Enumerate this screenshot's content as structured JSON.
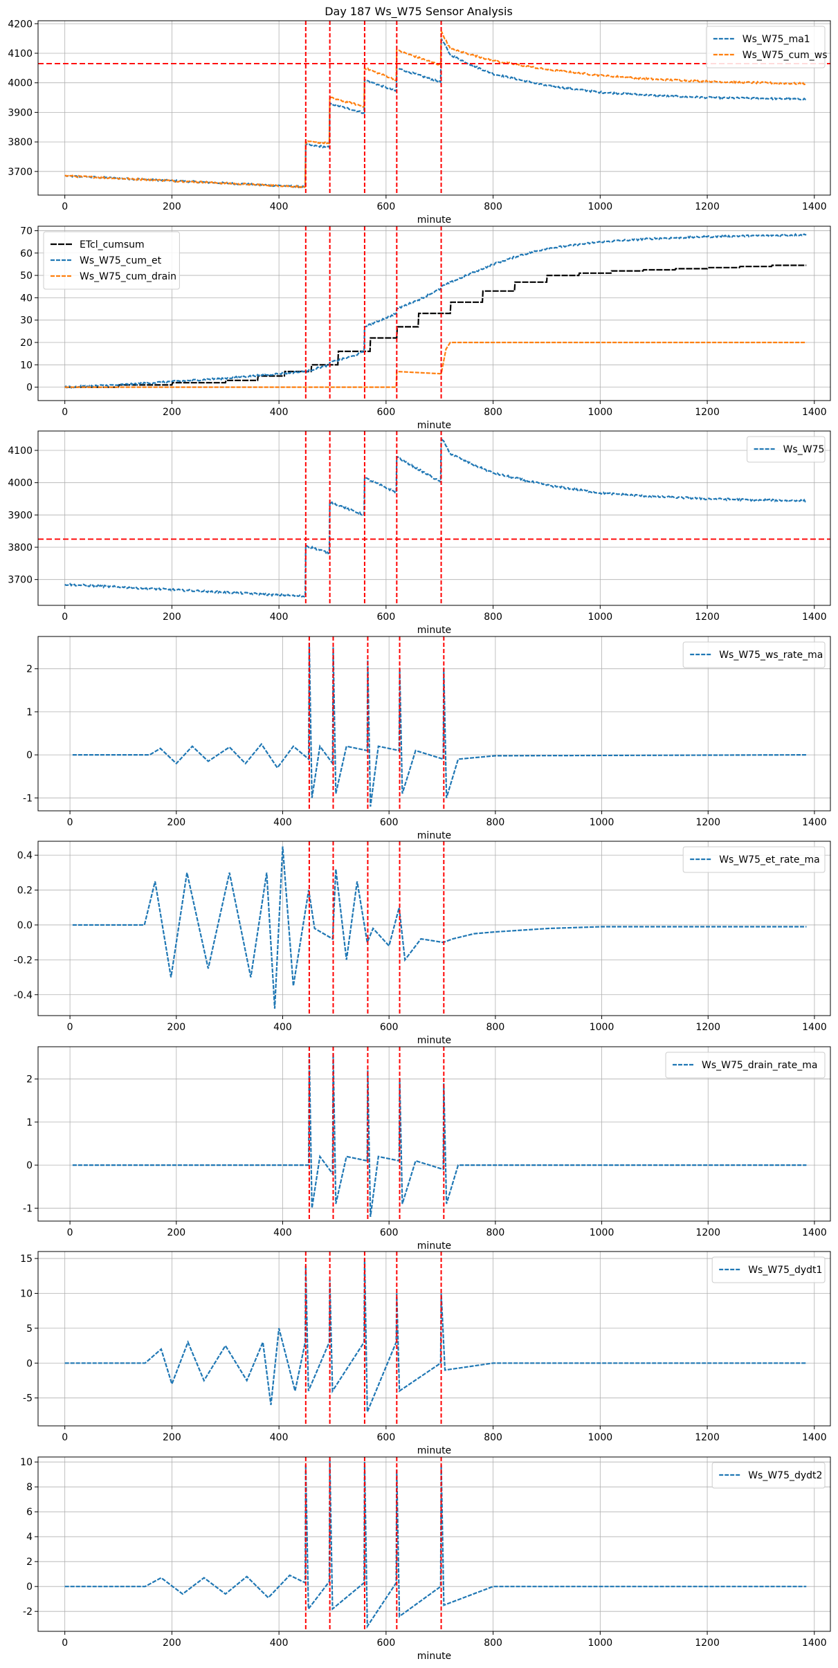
{
  "figure": {
    "title": "Day 187 Ws_W75 Sensor Analysis"
  },
  "colors": {
    "blue": "#1f77b4",
    "orange": "#ff7f0e",
    "black": "#000000",
    "red": "#ff0000",
    "grid": "#b0b0b0"
  },
  "chart_data": [
    {
      "type": "line",
      "xlabel": "minute",
      "xlim": [
        -50,
        1430
      ],
      "xticks": [
        0,
        200,
        400,
        600,
        800,
        1000,
        1200,
        1400
      ],
      "ylim": [
        3620,
        4210
      ],
      "yticks": [
        3700,
        3800,
        3900,
        4000,
        4100,
        4200
      ],
      "grid": true,
      "legend": "top-right",
      "event_lines": [
        450,
        495,
        560,
        620,
        703
      ],
      "hline": 4065,
      "series": [
        {
          "name": "Ws_W75_ma1",
          "color": "blue",
          "noise": 3,
          "x": [
            0,
            449,
            450,
            494,
            495,
            559,
            560,
            619,
            620,
            702,
            703,
            720,
            760,
            800,
            900,
            1000,
            1100,
            1200,
            1300,
            1385
          ],
          "y": [
            3685,
            3648,
            3790,
            3782,
            3930,
            3898,
            4010,
            3972,
            4050,
            4002,
            4150,
            4095,
            4060,
            4030,
            3990,
            3968,
            3957,
            3950,
            3947,
            3945
          ]
        },
        {
          "name": "Ws_W75_cum_ws",
          "color": "orange",
          "noise": 3,
          "x": [
            0,
            449,
            450,
            494,
            495,
            559,
            560,
            619,
            620,
            702,
            703,
            720,
            760,
            800,
            900,
            1000,
            1100,
            1200,
            1300,
            1385
          ],
          "y": [
            3685,
            3648,
            3800,
            3795,
            3950,
            3920,
            4050,
            4010,
            4110,
            4060,
            4175,
            4115,
            4095,
            4075,
            4045,
            4025,
            4012,
            4005,
            4000,
            3997
          ]
        }
      ]
    },
    {
      "type": "line",
      "xlabel": "minute",
      "xlim": [
        -50,
        1430
      ],
      "xticks": [
        0,
        200,
        400,
        600,
        800,
        1000,
        1200,
        1400
      ],
      "ylim": [
        -6,
        72
      ],
      "yticks": [
        0,
        10,
        20,
        30,
        40,
        50,
        60,
        70
      ],
      "grid": true,
      "legend": "top-left",
      "event_lines": [
        450,
        495,
        560,
        620,
        703
      ],
      "series": [
        {
          "name": "ETcl_cumsum",
          "color": "black",
          "noise": 0,
          "x": [
            0,
            100,
            101,
            200,
            201,
            300,
            301,
            360,
            361,
            410,
            411,
            460,
            461,
            510,
            511,
            570,
            571,
            620,
            621,
            660,
            661,
            720,
            721,
            780,
            781,
            840,
            841,
            900,
            901,
            960,
            961,
            1020,
            1021,
            1080,
            1081,
            1140,
            1141,
            1200,
            1201,
            1260,
            1261,
            1320,
            1321,
            1385
          ],
          "y": [
            0,
            0,
            1,
            1,
            2,
            2,
            3,
            3,
            5,
            5,
            7,
            7,
            10,
            10,
            16,
            16,
            22,
            22,
            27,
            27,
            33,
            33,
            38,
            38,
            43,
            43,
            47,
            47,
            50,
            50,
            51,
            51,
            52,
            52,
            52.5,
            52.5,
            53,
            53,
            53.5,
            53.5,
            54,
            54,
            54.5,
            54.5
          ]
        },
        {
          "name": "Ws_W75_cum_et",
          "color": "blue",
          "noise": 0.4,
          "x": [
            0,
            100,
            200,
            300,
            400,
            449,
            450,
            494,
            495,
            540,
            559,
            560,
            600,
            619,
            620,
            660,
            702,
            703,
            750,
            800,
            850,
            900,
            1000,
            1100,
            1200,
            1300,
            1385
          ],
          "y": [
            0,
            1,
            2.5,
            4,
            6,
            7,
            7,
            10,
            11,
            14,
            16,
            27,
            31,
            33,
            35,
            39,
            44,
            45,
            50,
            55,
            59,
            62,
            65,
            66.5,
            67.3,
            67.8,
            68.2
          ]
        },
        {
          "name": "Ws_W75_cum_drain",
          "color": "orange",
          "noise": 0,
          "x": [
            0,
            619,
            620,
            702,
            703,
            712,
            720,
            1385
          ],
          "y": [
            0,
            0,
            7,
            6,
            6,
            17,
            20,
            20
          ]
        }
      ]
    },
    {
      "type": "line",
      "xlabel": "minute",
      "xlim": [
        -50,
        1430
      ],
      "xticks": [
        0,
        200,
        400,
        600,
        800,
        1000,
        1200,
        1400
      ],
      "ylim": [
        3620,
        4160
      ],
      "yticks": [
        3700,
        3800,
        3900,
        4000,
        4100
      ],
      "grid": true,
      "legend": "top-right",
      "event_lines": [
        450,
        495,
        560,
        620,
        703
      ],
      "hline": 3825,
      "series": [
        {
          "name": "Ws_W75",
          "color": "blue",
          "noise": 3,
          "x": [
            0,
            449,
            450,
            494,
            495,
            559,
            560,
            619,
            620,
            702,
            703,
            720,
            760,
            800,
            900,
            1000,
            1100,
            1200,
            1300,
            1385
          ],
          "y": [
            3685,
            3648,
            3805,
            3782,
            3940,
            3900,
            4015,
            3970,
            4080,
            4002,
            4140,
            4090,
            4058,
            4030,
            3992,
            3968,
            3957,
            3950,
            3946,
            3944
          ]
        }
      ]
    },
    {
      "type": "line",
      "xlabel": "minute",
      "xlim": [
        -60,
        1430
      ],
      "xticks": [
        0,
        200,
        400,
        600,
        800,
        1000,
        1200,
        1400
      ],
      "ylim": [
        -1.3,
        2.75
      ],
      "yticks": [
        -1,
        0,
        1,
        2
      ],
      "grid": true,
      "legend": "top-right",
      "event_lines": [
        450,
        495,
        560,
        620,
        703
      ],
      "series": [
        {
          "name": "Ws_W75_ws_rate_ma",
          "color": "blue",
          "noise": 0,
          "x": [
            5,
            150,
            170,
            200,
            230,
            260,
            300,
            330,
            360,
            390,
            420,
            449,
            450,
            455,
            470,
            494,
            495,
            500,
            520,
            559,
            560,
            565,
            580,
            619,
            620,
            625,
            650,
            702,
            703,
            708,
            730,
            800,
            1385
          ],
          "y": [
            0,
            0,
            0.15,
            -0.2,
            0.2,
            -0.15,
            0.18,
            -0.2,
            0.25,
            -0.3,
            0.2,
            -0.1,
            2.6,
            -1.0,
            0.2,
            -0.2,
            2.5,
            -0.9,
            0.2,
            0.1,
            2.2,
            -1.2,
            0.2,
            0.1,
            2.0,
            -0.9,
            0.1,
            -0.1,
            2.0,
            -1.0,
            -0.1,
            -0.02,
            0
          ]
        }
      ]
    },
    {
      "type": "line",
      "xlabel": "minute",
      "xlim": [
        -60,
        1430
      ],
      "xticks": [
        0,
        200,
        400,
        600,
        800,
        1000,
        1200,
        1400
      ],
      "ylim": [
        -0.52,
        0.48
      ],
      "yticks": [
        -0.4,
        -0.2,
        0.0,
        0.2,
        0.4
      ],
      "grid": true,
      "legend": "top-right",
      "event_lines": [
        450,
        495,
        560,
        620,
        703
      ],
      "series": [
        {
          "name": "Ws_W75_et_rate_ma",
          "color": "blue",
          "noise": 0,
          "x": [
            5,
            140,
            160,
            190,
            220,
            260,
            300,
            340,
            370,
            385,
            400,
            420,
            449,
            460,
            494,
            500,
            520,
            540,
            559,
            570,
            600,
            619,
            630,
            660,
            702,
            720,
            760,
            800,
            900,
            1000,
            1385
          ],
          "y": [
            0,
            0,
            0.25,
            -0.3,
            0.3,
            -0.25,
            0.3,
            -0.3,
            0.3,
            -0.48,
            0.45,
            -0.35,
            0.2,
            -0.02,
            -0.08,
            0.32,
            -0.2,
            0.25,
            -0.1,
            -0.02,
            -0.12,
            0.1,
            -0.2,
            -0.08,
            -0.1,
            -0.08,
            -0.05,
            -0.04,
            -0.02,
            -0.01,
            -0.01
          ]
        }
      ]
    },
    {
      "type": "line",
      "xlabel": "minute",
      "xlim": [
        -60,
        1430
      ],
      "xticks": [
        0,
        200,
        400,
        600,
        800,
        1000,
        1200,
        1400
      ],
      "ylim": [
        -1.3,
        2.75
      ],
      "yticks": [
        -1,
        0,
        1,
        2
      ],
      "grid": true,
      "legend": "top-right",
      "event_lines": [
        450,
        495,
        560,
        620,
        703
      ],
      "series": [
        {
          "name": "Ws_W75_drain_rate_ma",
          "color": "blue",
          "noise": 0,
          "x": [
            5,
            449,
            450,
            455,
            470,
            494,
            495,
            500,
            520,
            559,
            560,
            565,
            580,
            619,
            620,
            625,
            650,
            702,
            703,
            708,
            730,
            1385
          ],
          "y": [
            0,
            0,
            2.6,
            -1.0,
            0.2,
            -0.2,
            2.6,
            -0.9,
            0.2,
            0.1,
            2.2,
            -1.2,
            0.2,
            0.1,
            2.0,
            -0.9,
            0.1,
            -0.1,
            1.9,
            -0.9,
            0,
            0
          ]
        }
      ]
    },
    {
      "type": "line",
      "xlabel": "minute",
      "xlim": [
        -50,
        1430
      ],
      "xticks": [
        0,
        200,
        400,
        600,
        800,
        1000,
        1200,
        1400
      ],
      "ylim": [
        -9,
        16
      ],
      "yticks": [
        -5,
        0,
        5,
        10,
        15
      ],
      "grid": true,
      "legend": "top-right",
      "event_lines": [
        450,
        495,
        560,
        620,
        703
      ],
      "series": [
        {
          "name": "Ws_W75_dydt1",
          "color": "blue",
          "noise": 0,
          "x": [
            0,
            150,
            180,
            200,
            230,
            260,
            300,
            340,
            370,
            385,
            400,
            430,
            449,
            450,
            455,
            494,
            495,
            500,
            559,
            560,
            565,
            619,
            620,
            625,
            702,
            703,
            710,
            800,
            1385
          ],
          "y": [
            0,
            0,
            2,
            -3,
            3,
            -2.5,
            2.5,
            -2.5,
            3,
            -6,
            5,
            -4,
            3,
            14,
            -4,
            3,
            12,
            -4,
            3,
            15,
            -7,
            3,
            10,
            -4,
            0,
            10,
            -1,
            0,
            0
          ]
        }
      ]
    },
    {
      "type": "line",
      "xlabel": "minute",
      "xlim": [
        -50,
        1430
      ],
      "xticks": [
        0,
        200,
        400,
        600,
        800,
        1000,
        1200,
        1400
      ],
      "ylim": [
        -3.6,
        10.4
      ],
      "yticks": [
        -2,
        0,
        2,
        4,
        6,
        8,
        10
      ],
      "grid": true,
      "legend": "top-right",
      "event_lines": [
        450,
        495,
        560,
        620,
        703
      ],
      "series": [
        {
          "name": "Ws_W75_dydt2",
          "color": "blue",
          "noise": 0,
          "x": [
            0,
            150,
            180,
            220,
            260,
            300,
            340,
            380,
            420,
            449,
            450,
            455,
            494,
            495,
            500,
            559,
            560,
            565,
            619,
            620,
            625,
            702,
            703,
            708,
            800,
            1385
          ],
          "y": [
            0,
            0,
            0.7,
            -0.6,
            0.7,
            -0.6,
            0.8,
            -0.9,
            0.9,
            0.3,
            9.8,
            -1.8,
            0.4,
            10.2,
            -1.8,
            0.3,
            10,
            -3.2,
            0.3,
            9.4,
            -2.4,
            0,
            9.8,
            -1.5,
            0,
            0
          ]
        }
      ]
    }
  ]
}
